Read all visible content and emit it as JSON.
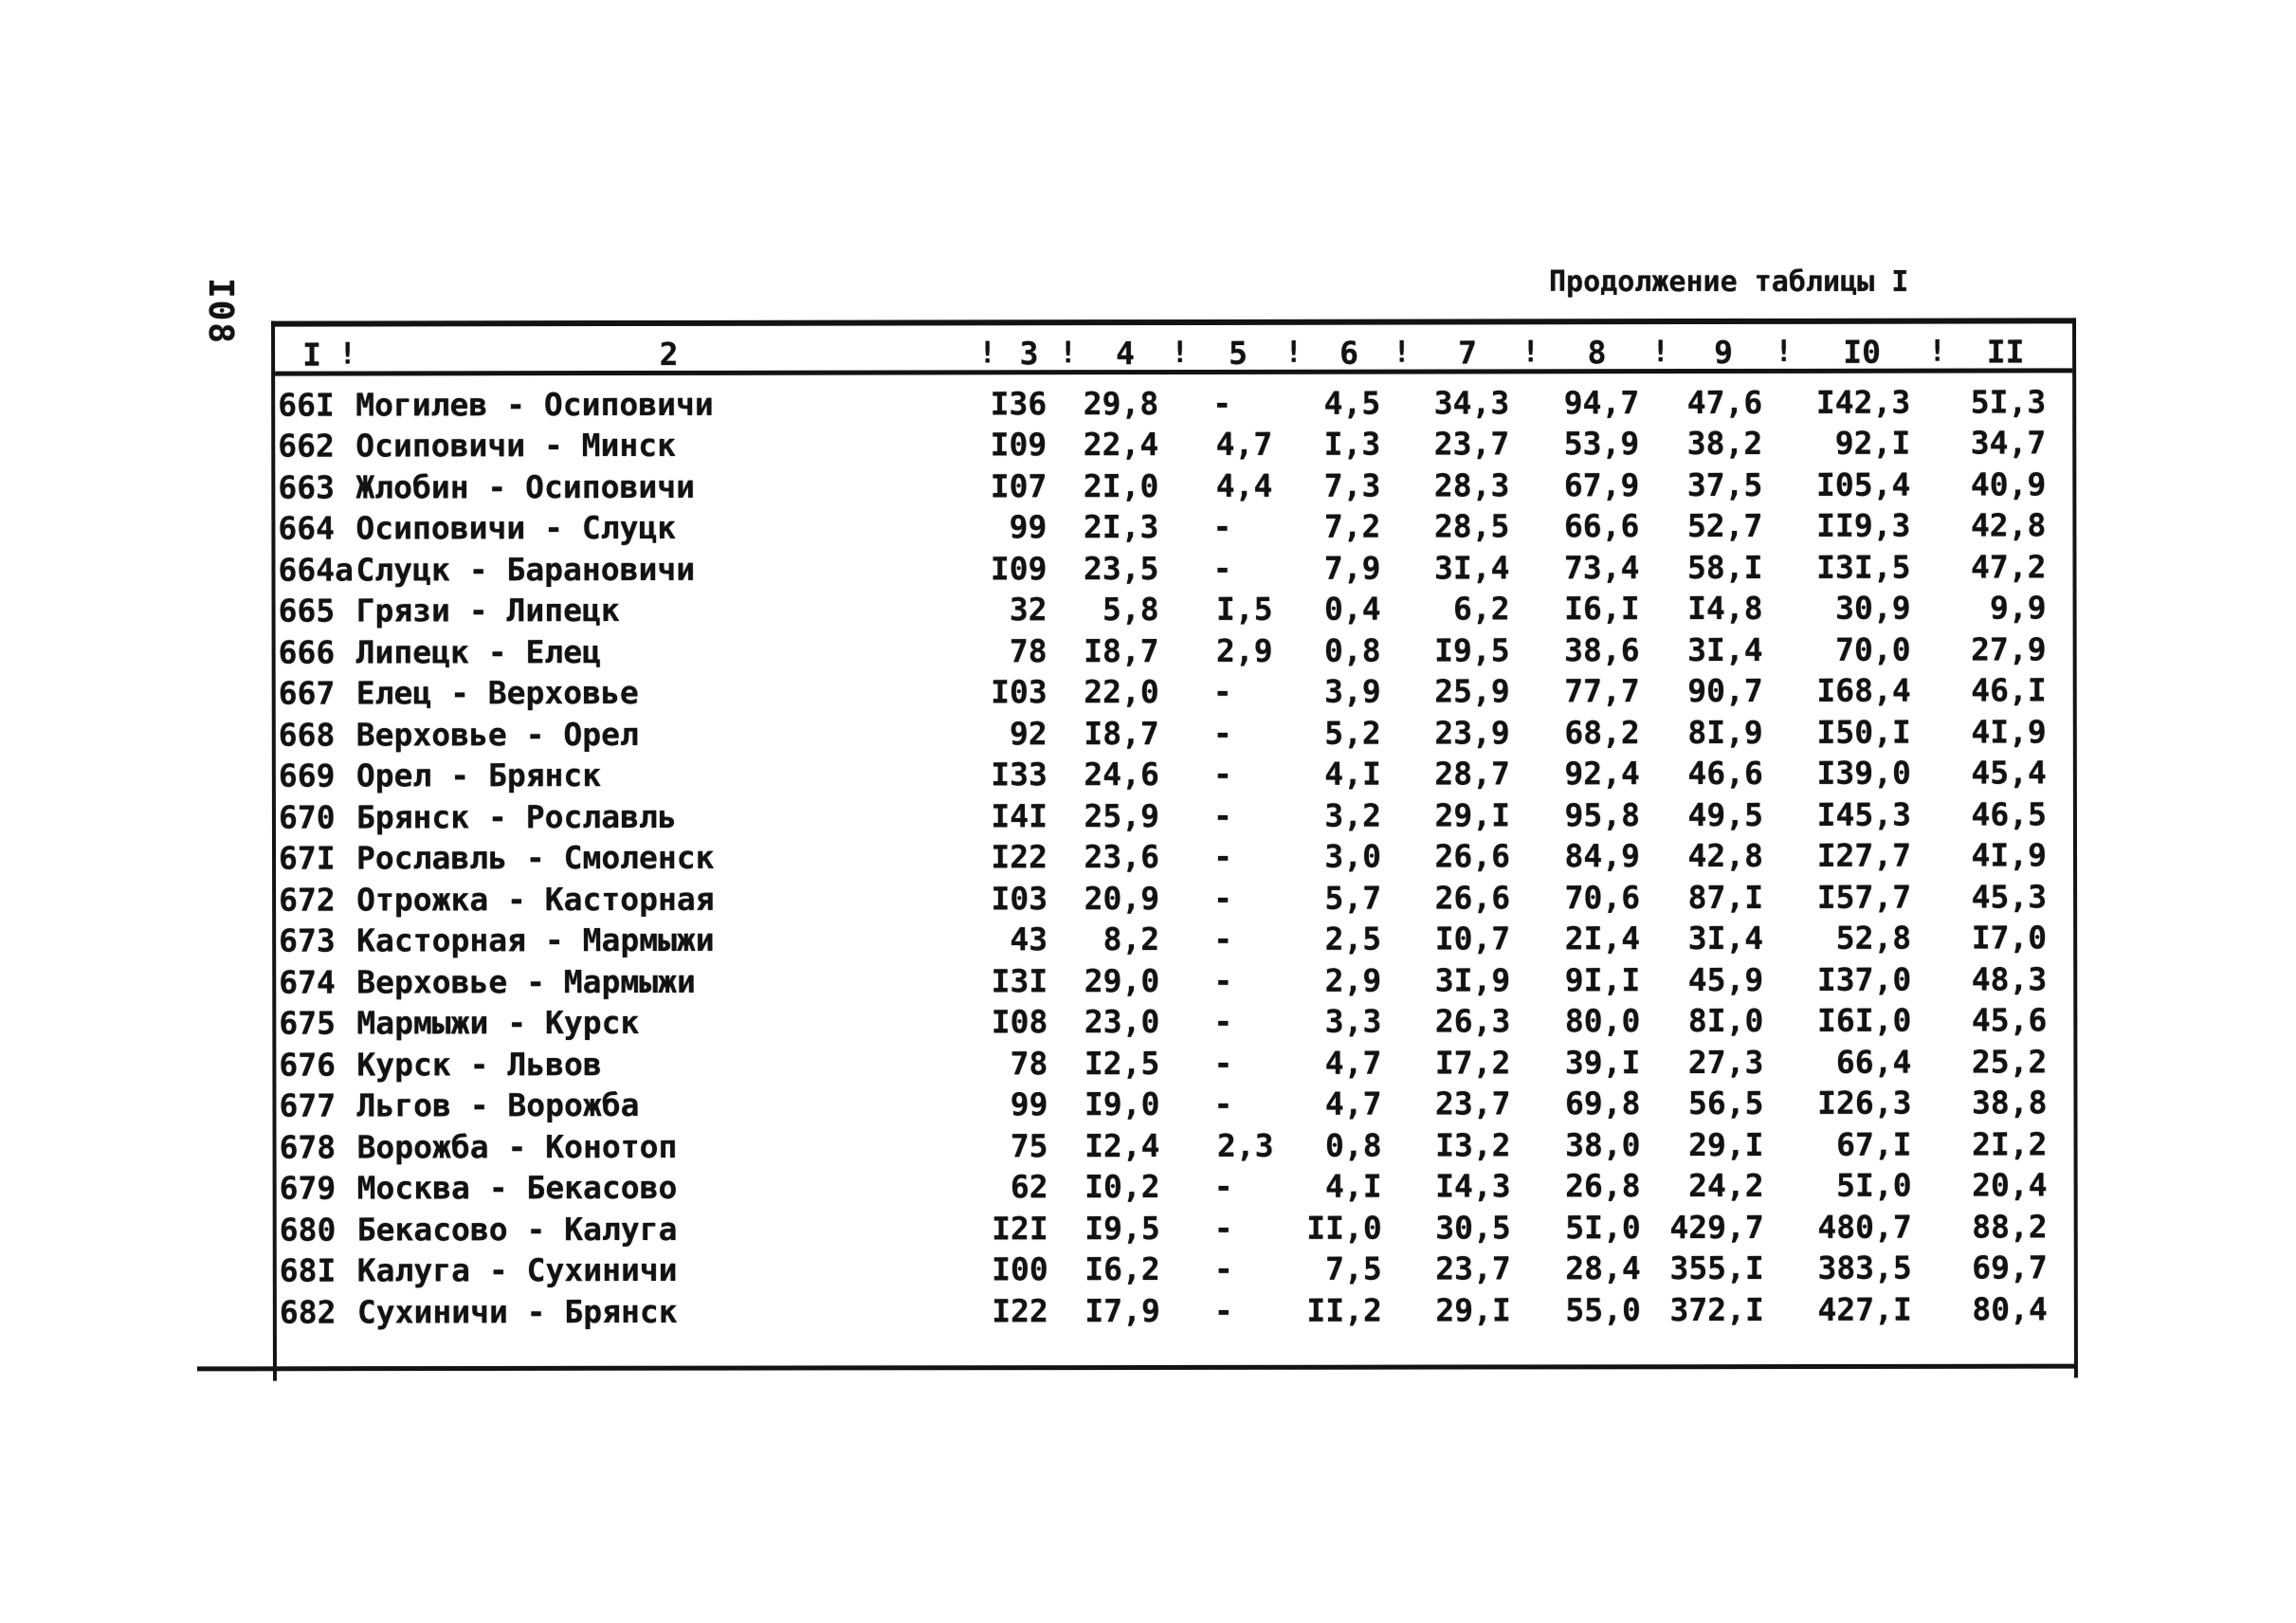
{
  "page": {
    "title": "Продолжение таблицы I",
    "side_page_number": "I08"
  },
  "table": {
    "header_separator": "!",
    "column_headers": [
      "I",
      "2",
      "3",
      "4",
      "5",
      "6",
      "7",
      "8",
      "9",
      "I0",
      "II"
    ],
    "rows": [
      {
        "num": "66I",
        "name": "Могилев - Осиповичи",
        "values": [
          "I36",
          "29,8",
          "-",
          "4,5",
          "34,3",
          "94,7",
          "47,6",
          "I42,3",
          "5I,3"
        ]
      },
      {
        "num": "662",
        "name": "Осиповичи - Минск",
        "values": [
          "I09",
          "22,4",
          "4,7",
          "I,3",
          "23,7",
          "53,9",
          "38,2",
          "92,I",
          "34,7"
        ]
      },
      {
        "num": "663",
        "name": "Жлобин - Осиповичи",
        "values": [
          "I07",
          "2I,0",
          "4,4",
          "7,3",
          "28,3",
          "67,9",
          "37,5",
          "I05,4",
          "40,9"
        ]
      },
      {
        "num": "664",
        "name": "Осиповичи - Слуцк",
        "values": [
          "99",
          "2I,3",
          "-",
          "7,2",
          "28,5",
          "66,6",
          "52,7",
          "II9,3",
          "42,8"
        ]
      },
      {
        "num": "664а",
        "name": "Слуцк - Барановичи",
        "values": [
          "I09",
          "23,5",
          "-",
          "7,9",
          "3I,4",
          "73,4",
          "58,I",
          "I3I,5",
          "47,2"
        ]
      },
      {
        "num": "665",
        "name": "Грязи - Липецк",
        "values": [
          "32",
          "5,8",
          "I,5",
          "0,4",
          "6,2",
          "I6,I",
          "I4,8",
          "30,9",
          "9,9"
        ]
      },
      {
        "num": "666",
        "name": "Липецк - Елец",
        "values": [
          "78",
          "I8,7",
          "2,9",
          "0,8",
          "I9,5",
          "38,6",
          "3I,4",
          "70,0",
          "27,9"
        ]
      },
      {
        "num": "667",
        "name": "Елец - Верховье",
        "values": [
          "I03",
          "22,0",
          "-",
          "3,9",
          "25,9",
          "77,7",
          "90,7",
          "I68,4",
          "46,I"
        ]
      },
      {
        "num": "668",
        "name": "Верховье - Орел",
        "values": [
          "92",
          "I8,7",
          "-",
          "5,2",
          "23,9",
          "68,2",
          "8I,9",
          "I50,I",
          "4I,9"
        ]
      },
      {
        "num": "669",
        "name": "Орел - Брянск",
        "values": [
          "I33",
          "24,6",
          "-",
          "4,I",
          "28,7",
          "92,4",
          "46,6",
          "I39,0",
          "45,4"
        ]
      },
      {
        "num": "670",
        "name": "Брянск - Рославль",
        "values": [
          "I4I",
          "25,9",
          "-",
          "3,2",
          "29,I",
          "95,8",
          "49,5",
          "I45,3",
          "46,5"
        ]
      },
      {
        "num": "67I",
        "name": "Рославль - Смоленск",
        "values": [
          "I22",
          "23,6",
          "-",
          "3,0",
          "26,6",
          "84,9",
          "42,8",
          "I27,7",
          "4I,9"
        ]
      },
      {
        "num": "672",
        "name": "Отрожка - Касторная",
        "values": [
          "I03",
          "20,9",
          "-",
          "5,7",
          "26,6",
          "70,6",
          "87,I",
          "I57,7",
          "45,3"
        ]
      },
      {
        "num": "673",
        "name": "Касторная - Мармыжи",
        "values": [
          "43",
          "8,2",
          "-",
          "2,5",
          "I0,7",
          "2I,4",
          "3I,4",
          "52,8",
          "I7,0"
        ]
      },
      {
        "num": "674",
        "name": "Верховье - Мармыжи",
        "values": [
          "I3I",
          "29,0",
          "-",
          "2,9",
          "3I,9",
          "9I,I",
          "45,9",
          "I37,0",
          "48,3"
        ]
      },
      {
        "num": "675",
        "name": "Мармыжи - Курск",
        "values": [
          "I08",
          "23,0",
          "-",
          "3,3",
          "26,3",
          "80,0",
          "8I,0",
          "I6I,0",
          "45,6"
        ]
      },
      {
        "num": "676",
        "name": "Курск - Львов",
        "values": [
          "78",
          "I2,5",
          "-",
          "4,7",
          "I7,2",
          "39,I",
          "27,3",
          "66,4",
          "25,2"
        ]
      },
      {
        "num": "677",
        "name": "Льгов - Ворожба",
        "values": [
          "99",
          "I9,0",
          "-",
          "4,7",
          "23,7",
          "69,8",
          "56,5",
          "I26,3",
          "38,8"
        ]
      },
      {
        "num": "678",
        "name": "Ворожба - Конотоп",
        "values": [
          "75",
          "I2,4",
          "2,3",
          "0,8",
          "I3,2",
          "38,0",
          "29,I",
          "67,I",
          "2I,2"
        ]
      },
      {
        "num": "679",
        "name": "Москва - Бекасово",
        "values": [
          "62",
          "I0,2",
          "-",
          "4,I",
          "I4,3",
          "26,8",
          "24,2",
          "5I,0",
          "20,4"
        ]
      },
      {
        "num": "680",
        "name": "Бекасово - Калуга",
        "values": [
          "I2I",
          "I9,5",
          "-",
          "II,0",
          "30,5",
          "5I,0",
          "429,7",
          "480,7",
          "88,2"
        ]
      },
      {
        "num": "68I",
        "name": "Калуга - Сухиничи",
        "values": [
          "I00",
          "I6,2",
          "-",
          "7,5",
          "23,7",
          "28,4",
          "355,I",
          "383,5",
          "69,7"
        ]
      },
      {
        "num": "682",
        "name": "Сухиничи - Брянск",
        "values": [
          "I22",
          "I7,9",
          "-",
          "II,2",
          "29,I",
          "55,0",
          "372,I",
          "427,I",
          "80,4"
        ]
      }
    ]
  }
}
